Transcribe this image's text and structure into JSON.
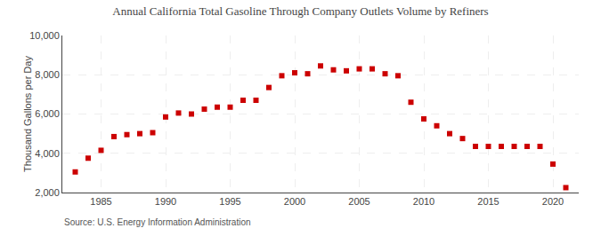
{
  "chart_data": {
    "type": "scatter",
    "title": "Annual California Total Gasoline Through Company Outlets Volume by Refiners",
    "ylabel": "Thousand Gallons per Day",
    "annotations": [
      "Source: U.S. Energy Information Administration"
    ],
    "x": [
      1983,
      1984,
      1985,
      1986,
      1987,
      1988,
      1989,
      1990,
      1991,
      1992,
      1993,
      1994,
      1995,
      1996,
      1997,
      1998,
      1999,
      2000,
      2001,
      2002,
      2003,
      2004,
      2005,
      2006,
      2007,
      2008,
      2009,
      2010,
      2011,
      2012,
      2013,
      2014,
      2015,
      2016,
      2017,
      2018,
      2019,
      2020,
      2021
    ],
    "values": [
      3050,
      3750,
      4150,
      4850,
      4950,
      5000,
      5050,
      5850,
      6050,
      6000,
      6250,
      6350,
      6350,
      6700,
      6700,
      7350,
      7950,
      8100,
      8050,
      8450,
      8250,
      8200,
      8300,
      8300,
      8050,
      7950,
      6600,
      5750,
      5400,
      5000,
      4750,
      4350,
      4350,
      4350,
      4350,
      4350,
      4350,
      3450,
      2250
    ],
    "color": "#cc0000",
    "marker": "square",
    "xlim": [
      1982,
      2022
    ],
    "xticks": [
      1985,
      1990,
      1995,
      2000,
      2005,
      2010,
      2015,
      2020
    ],
    "ylim": [
      2000,
      10000
    ],
    "yticks": [
      {
        "value": 2000,
        "label": "2,000"
      },
      {
        "value": 4000,
        "label": "4,000"
      },
      {
        "value": 6000,
        "label": "6,000"
      },
      {
        "value": 8000,
        "label": "8,000"
      },
      {
        "value": 10000,
        "label": "10,000"
      }
    ],
    "grid": true
  }
}
